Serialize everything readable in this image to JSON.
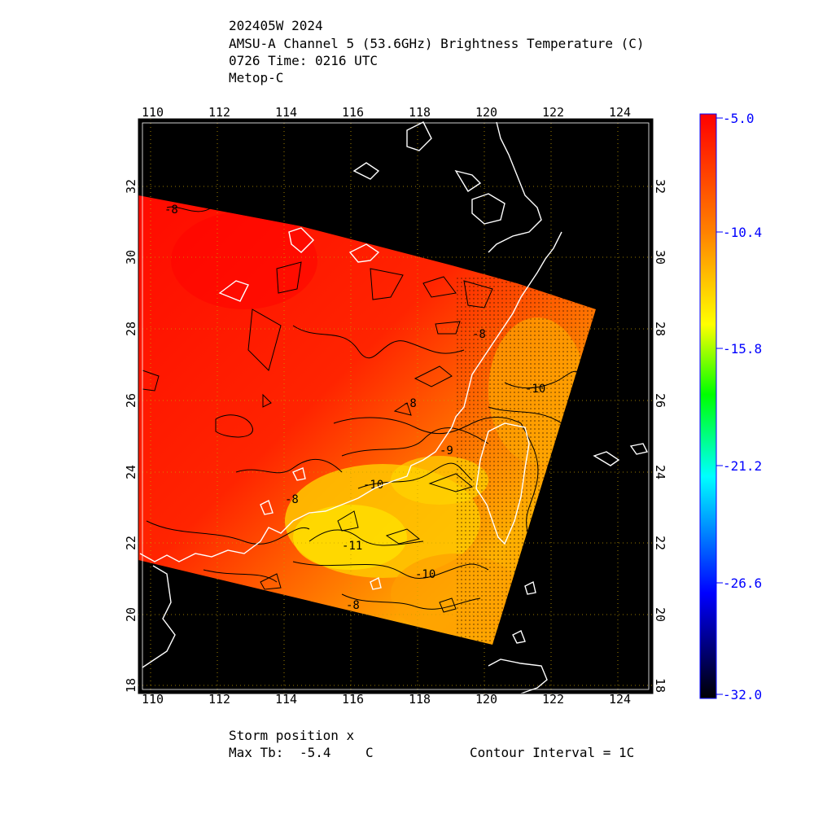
{
  "header": {
    "line1": "202405W 2024",
    "line2": "AMSU-A Channel 5 (53.6GHz) Brightness Temperature (C)",
    "line3": "0726 Time: 0216 UTC",
    "line4": "Metop-C"
  },
  "footer": {
    "storm_position": "Storm position x",
    "max_tb_label": "Max Tb:",
    "max_tb_value": "-5.4",
    "max_tb_unit": "C",
    "contour_interval": "Contour Interval = 1C"
  },
  "map": {
    "lon_ticks": [
      "110",
      "112",
      "114",
      "116",
      "118",
      "120",
      "122",
      "124"
    ],
    "lat_ticks": [
      "18",
      "20",
      "22",
      "24",
      "26",
      "28",
      "30",
      "32"
    ],
    "contour_labels": [
      "-8",
      "-8",
      "-8",
      "-8",
      "-9",
      "-10",
      "-10",
      "-10",
      "-11",
      "-8"
    ],
    "colorbar_ticks": [
      "-5.0",
      "-10.4",
      "-15.8",
      "-21.2",
      "-26.6",
      "-32.0"
    ],
    "colors": {
      "background": "#000000",
      "coastline": "#ffffff",
      "contour": "#000000",
      "grid": "#c8a000",
      "colorbar_label": "#0000ff",
      "scale": [
        "#ff0000",
        "#ff8000",
        "#ffff00",
        "#00ff00",
        "#00ffff",
        "#0000ff",
        "#000000"
      ]
    }
  }
}
